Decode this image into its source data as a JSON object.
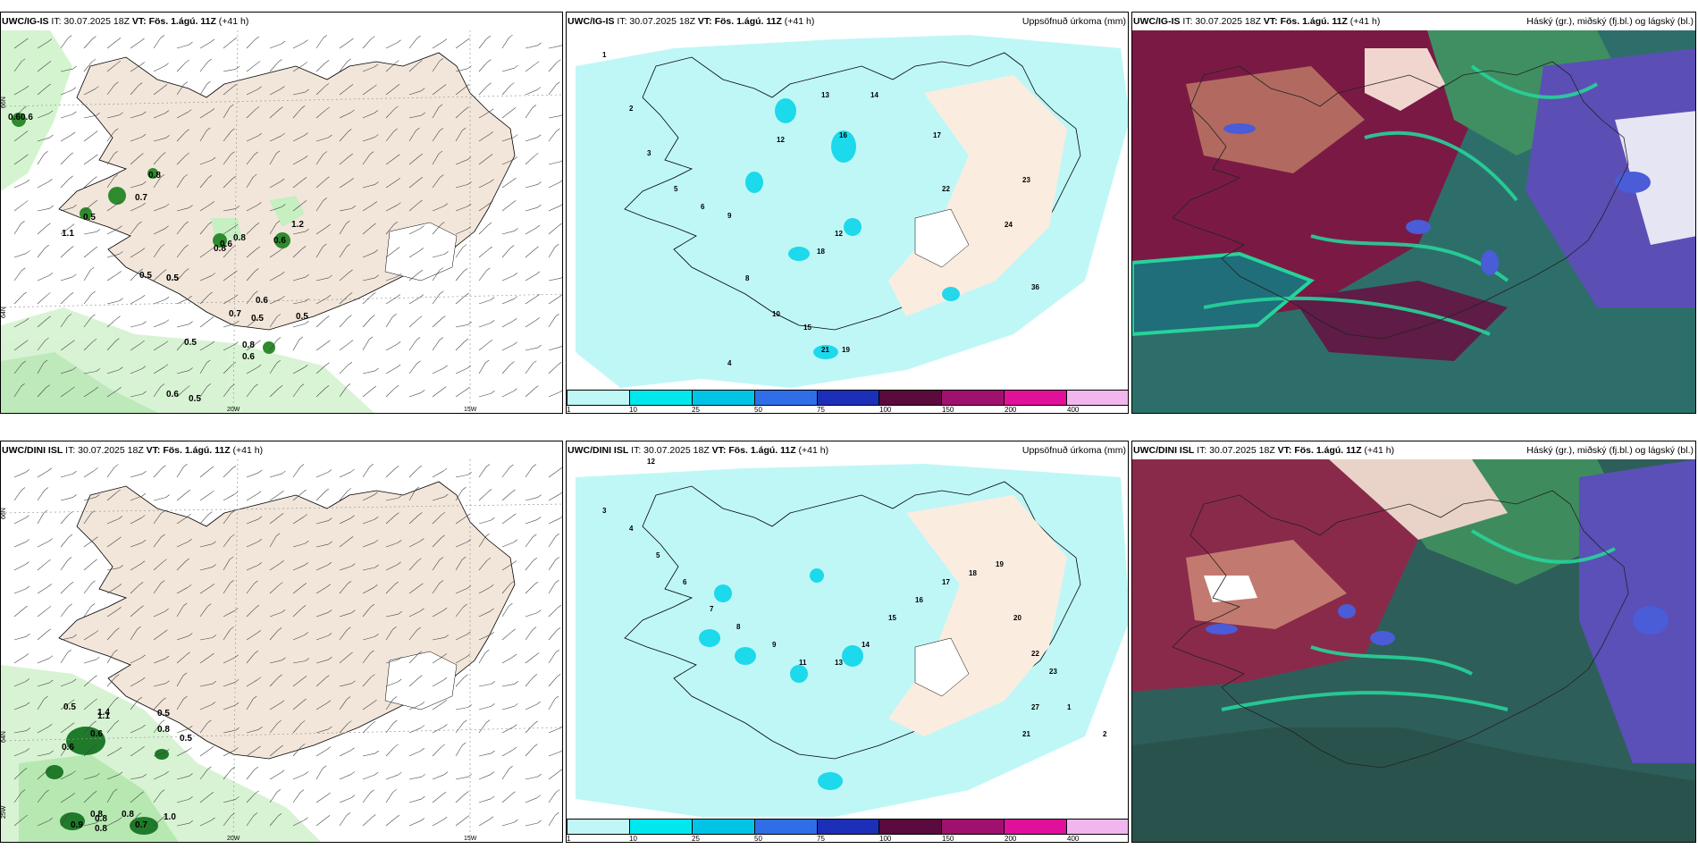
{
  "panels": [
    {
      "id": "wind-igis",
      "model": "UWC/IG-IS",
      "it": "IT: 30.07.2025 18Z",
      "vt_label": "VT:",
      "vt": "Fös. 1.ágú. 11Z",
      "lead": "(+41 h)",
      "right_title": ""
    },
    {
      "id": "precip-igis",
      "model": "UWC/IG-IS",
      "it": "IT: 30.07.2025 18Z",
      "vt_label": "VT:",
      "vt": "Fös. 1.ágú. 11Z",
      "lead": "(+41 h)",
      "right_title": "Uppsöfnuð úrkoma (mm)"
    },
    {
      "id": "cloud-igis",
      "model": "UWC/IG-IS",
      "it": "IT: 30.07.2025 18Z",
      "vt_label": "VT:",
      "vt": "Fös. 1.ágú. 11Z",
      "lead": "(+41 h)",
      "right_title": "Háský (gr.), miðský (fj.bl.) og lágský (bl.)"
    },
    {
      "id": "wind-dini",
      "model": "UWC/DINI ISL",
      "it": "IT: 30.07.2025 18Z",
      "vt_label": "VT:",
      "vt": "Fös. 1.ágú. 11Z",
      "lead": "(+41 h)",
      "right_title": ""
    },
    {
      "id": "precip-dini",
      "model": "UWC/DINI ISL",
      "it": "IT: 30.07.2025 18Z",
      "vt_label": "VT:",
      "vt": "Fös. 1.ágú. 11Z",
      "lead": "(+41 h)",
      "right_title": "Uppsöfnuð úrkoma (mm)"
    },
    {
      "id": "cloud-dini",
      "model": "UWC/DINI ISL",
      "it": "IT: 30.07.2025 18Z",
      "vt_label": "VT:",
      "vt": "Fös. 1.ágú. 11Z",
      "lead": "(+41 h)",
      "right_title": "Háský (gr.), miðský (fj.bl.) og lágský (bl.)"
    }
  ],
  "grid_labels": {
    "lat66": "66N",
    "lat64": "64N",
    "lon25": "25W",
    "lon20": "20W",
    "lon15": "15W"
  },
  "colorbar": {
    "ticks": [
      "1",
      "10",
      "25",
      "50",
      "75",
      "100",
      "150",
      "200",
      "400"
    ],
    "colors": [
      "#bff7f7",
      "#00e8ee",
      "#00c4e6",
      "#2f6ee6",
      "#1c2fb8",
      "#5a0a3c",
      "#a0106e",
      "#e0109a",
      "#f2b6ee"
    ]
  },
  "wind_igis_labels": [
    "0.6",
    "0.8",
    "0.7",
    "0.5",
    "0.5",
    "1.1",
    "1.2",
    "0.8",
    "0.8",
    "0.5",
    "0.5",
    "0.6",
    "0.7",
    "0.5",
    "0.5",
    "0.5",
    "0.6",
    "0.8",
    "0.6",
    "0.6",
    "0.5",
    "0.6",
    "0.6"
  ],
  "wind_dini_labels": [
    "0.5",
    "1.1",
    "0.5",
    "0.8",
    "0.5",
    "0.6",
    "1.4",
    "0.9",
    "0.8",
    "0.8",
    "0.7",
    "1.0",
    "0.6",
    "0.8",
    "0.8"
  ],
  "precip_igis_labels": [
    "1",
    "2",
    "3",
    "5",
    "6",
    "9",
    "12",
    "13",
    "14",
    "16",
    "17",
    "22",
    "23",
    "24",
    "36",
    "12",
    "18",
    "19",
    "21",
    "4",
    "8",
    "10",
    "15"
  ],
  "precip_dini_labels": [
    "12",
    "3",
    "4",
    "5",
    "6",
    "7",
    "8",
    "9",
    "11",
    "13",
    "14",
    "15",
    "16",
    "17",
    "18",
    "19",
    "20",
    "22",
    "23",
    "27",
    "21",
    "1",
    "2"
  ]
}
